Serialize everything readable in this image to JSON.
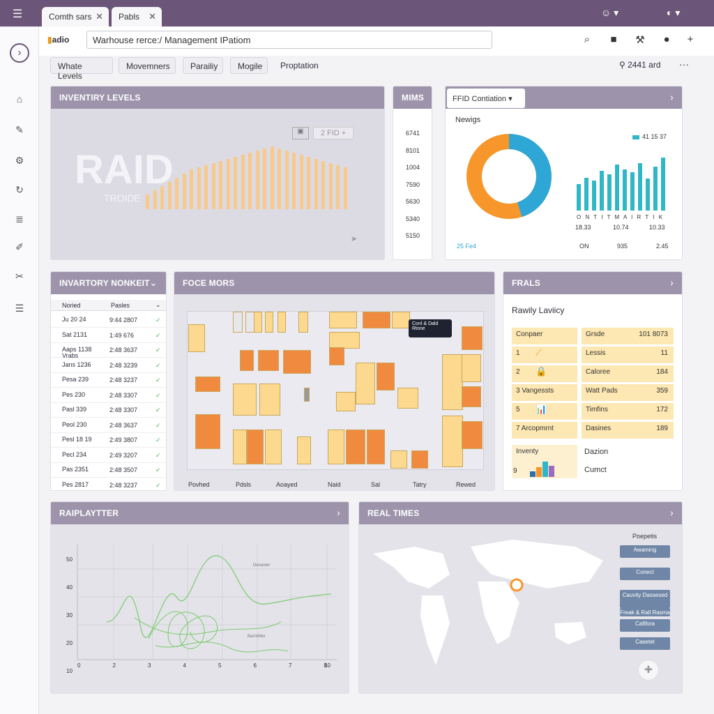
{
  "tabs": [
    {
      "label": "Comth sars"
    },
    {
      "label": "Pabls"
    }
  ],
  "address": "Warhouse rerce:/ Management IPatiom",
  "brand": "adio",
  "chips": [
    "Whate Levels",
    "Movemners",
    "Parailiy",
    "Mogile",
    "Proptation"
  ],
  "user_label": "2441 ard",
  "more": "···",
  "inventory": {
    "title": "INVENTIRY LEVELS",
    "big": "RAID",
    "sub": "TROIDE",
    "badge": "2 FID +",
    "bars": [
      14,
      18,
      22,
      26,
      30,
      34,
      38,
      40,
      42,
      44,
      46,
      48,
      50,
      52,
      54,
      56,
      58,
      60,
      58,
      56,
      54,
      52,
      50,
      48,
      46,
      44,
      42,
      40
    ]
  },
  "mims": {
    "title": "MIMS",
    "values": [
      "6741",
      "8101",
      "1004",
      "7590",
      "5630",
      "5340",
      "5150"
    ]
  },
  "fid": {
    "dropdown": "FFID Contiation ▾",
    "label": "Newigs",
    "legend": "41 15 37",
    "donut": [
      0.55,
      0.45
    ],
    "x_ticks": "O N T I T M A I R T I K",
    "bottom_values": [
      "18.33",
      "10.74",
      "10.33"
    ],
    "footer": [
      "ON",
      "935",
      "2.45"
    ],
    "link": "25 Fe4",
    "bars": [
      40,
      50,
      45,
      60,
      55,
      70,
      62,
      58,
      72,
      48,
      66,
      80
    ]
  },
  "monkey": {
    "title": "INVARTORY NONKEIT",
    "headers": [
      "Noried",
      "Pasles"
    ],
    "rows": [
      [
        "Ju 20 24",
        "9:44 2807"
      ],
      [
        "Sat 2131",
        "1:49 676"
      ],
      [
        "Aaps 1138 Vrabs",
        "2:48 3637"
      ],
      [
        "Jans 1236",
        "2:48 3239"
      ],
      [
        "Pesa 239",
        "2:48 3237"
      ],
      [
        "Pes 230",
        "2:48 3307"
      ],
      [
        "Pasl 339",
        "2:48 3307"
      ],
      [
        "Peol 230",
        "2:48 3637"
      ],
      [
        "Pesl 18 19",
        "2:49 3807"
      ],
      [
        "Pecl 234",
        "2:49 3207"
      ],
      [
        "Pas 2351",
        "2:48 3507"
      ],
      [
        "Pes 2817",
        "2:48 3237"
      ]
    ]
  },
  "force": {
    "title": "FOCE MORS",
    "tooltip": "Conl & Dald Rtone",
    "labels": [
      "Povhed",
      "Pdsls",
      "Aoayed",
      "Naid",
      "Sal",
      "Tatry",
      "Rewed"
    ]
  },
  "frals": {
    "title": "FRALS",
    "subtitle": "Rawily Laviicy",
    "left": [
      {
        "n": "",
        "t": "Conpaer"
      },
      {
        "n": "1",
        "t": ""
      },
      {
        "n": "2",
        "t": ""
      },
      {
        "n": "3",
        "t": "Vangessts"
      },
      {
        "n": "5",
        "t": ""
      },
      {
        "n": "7",
        "t": "Arcopmrnt"
      }
    ],
    "right": [
      {
        "l": "Grsde",
        "v": "101 8073"
      },
      {
        "l": "Lessis",
        "v": "11"
      },
      {
        "l": "Caloree",
        "v": "184"
      },
      {
        "l": "Watt Pads",
        "v": "359"
      },
      {
        "l": "Timfins",
        "v": "172"
      },
      {
        "l": "Dasines",
        "v": "189"
      }
    ],
    "extra_left": "Inventy",
    "extra_n": "9",
    "extra_right1": "Dazion",
    "extra_right2": "Cumct"
  },
  "rainplatter": {
    "title": "RAIPLAYTTER",
    "y_ticks": [
      "50",
      "40",
      "30",
      "20",
      "10"
    ],
    "x_ticks": [
      "0",
      "2",
      "3",
      "4",
      "5",
      "6",
      "7",
      "8",
      "10"
    ],
    "note1": "Denavter",
    "note2": "Barnhilter"
  },
  "realtime": {
    "title": "REAL TIMES",
    "label": "Poepetis",
    "buttons": [
      "Awaming",
      "Conect",
      "Cauvity Dassesed",
      "Freak & Rall Rasma",
      "Cafifora",
      "Casetet"
    ]
  },
  "colors": {
    "accent": "#6b5578",
    "header": "#9d94ab",
    "orange": "#f7962b",
    "teal": "#2fb7c8",
    "cell": "#fde7b2"
  }
}
